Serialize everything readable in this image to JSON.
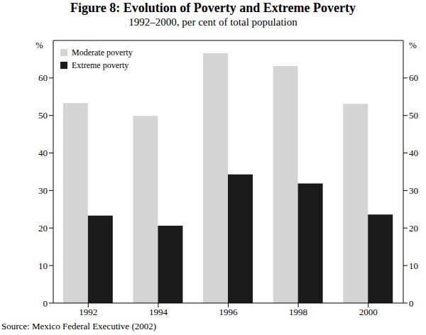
{
  "chart_data": {
    "type": "bar",
    "title": "Figure 8: Evolution of Poverty and Extreme Poverty",
    "subtitle": "1992–2000, per cent of total population",
    "ylabel": "%",
    "source": "Source: Mexico Federal Executive (2002)",
    "categories": [
      "1992",
      "1994",
      "1996",
      "1998",
      "2000"
    ],
    "series": [
      {
        "name": "Moderate poverty",
        "color": "#d4d4d4",
        "values": [
          53.3,
          49.9,
          66.6,
          63.2,
          53.1
        ]
      },
      {
        "name": "Extreme poverty",
        "color": "#1a1a1a",
        "values": [
          23.3,
          20.6,
          34.3,
          31.9,
          23.6
        ]
      }
    ],
    "ylim": [
      0,
      70
    ],
    "yticks": [
      0,
      10,
      20,
      30,
      40,
      50,
      60
    ],
    "grid": false,
    "legend": "upper left"
  }
}
